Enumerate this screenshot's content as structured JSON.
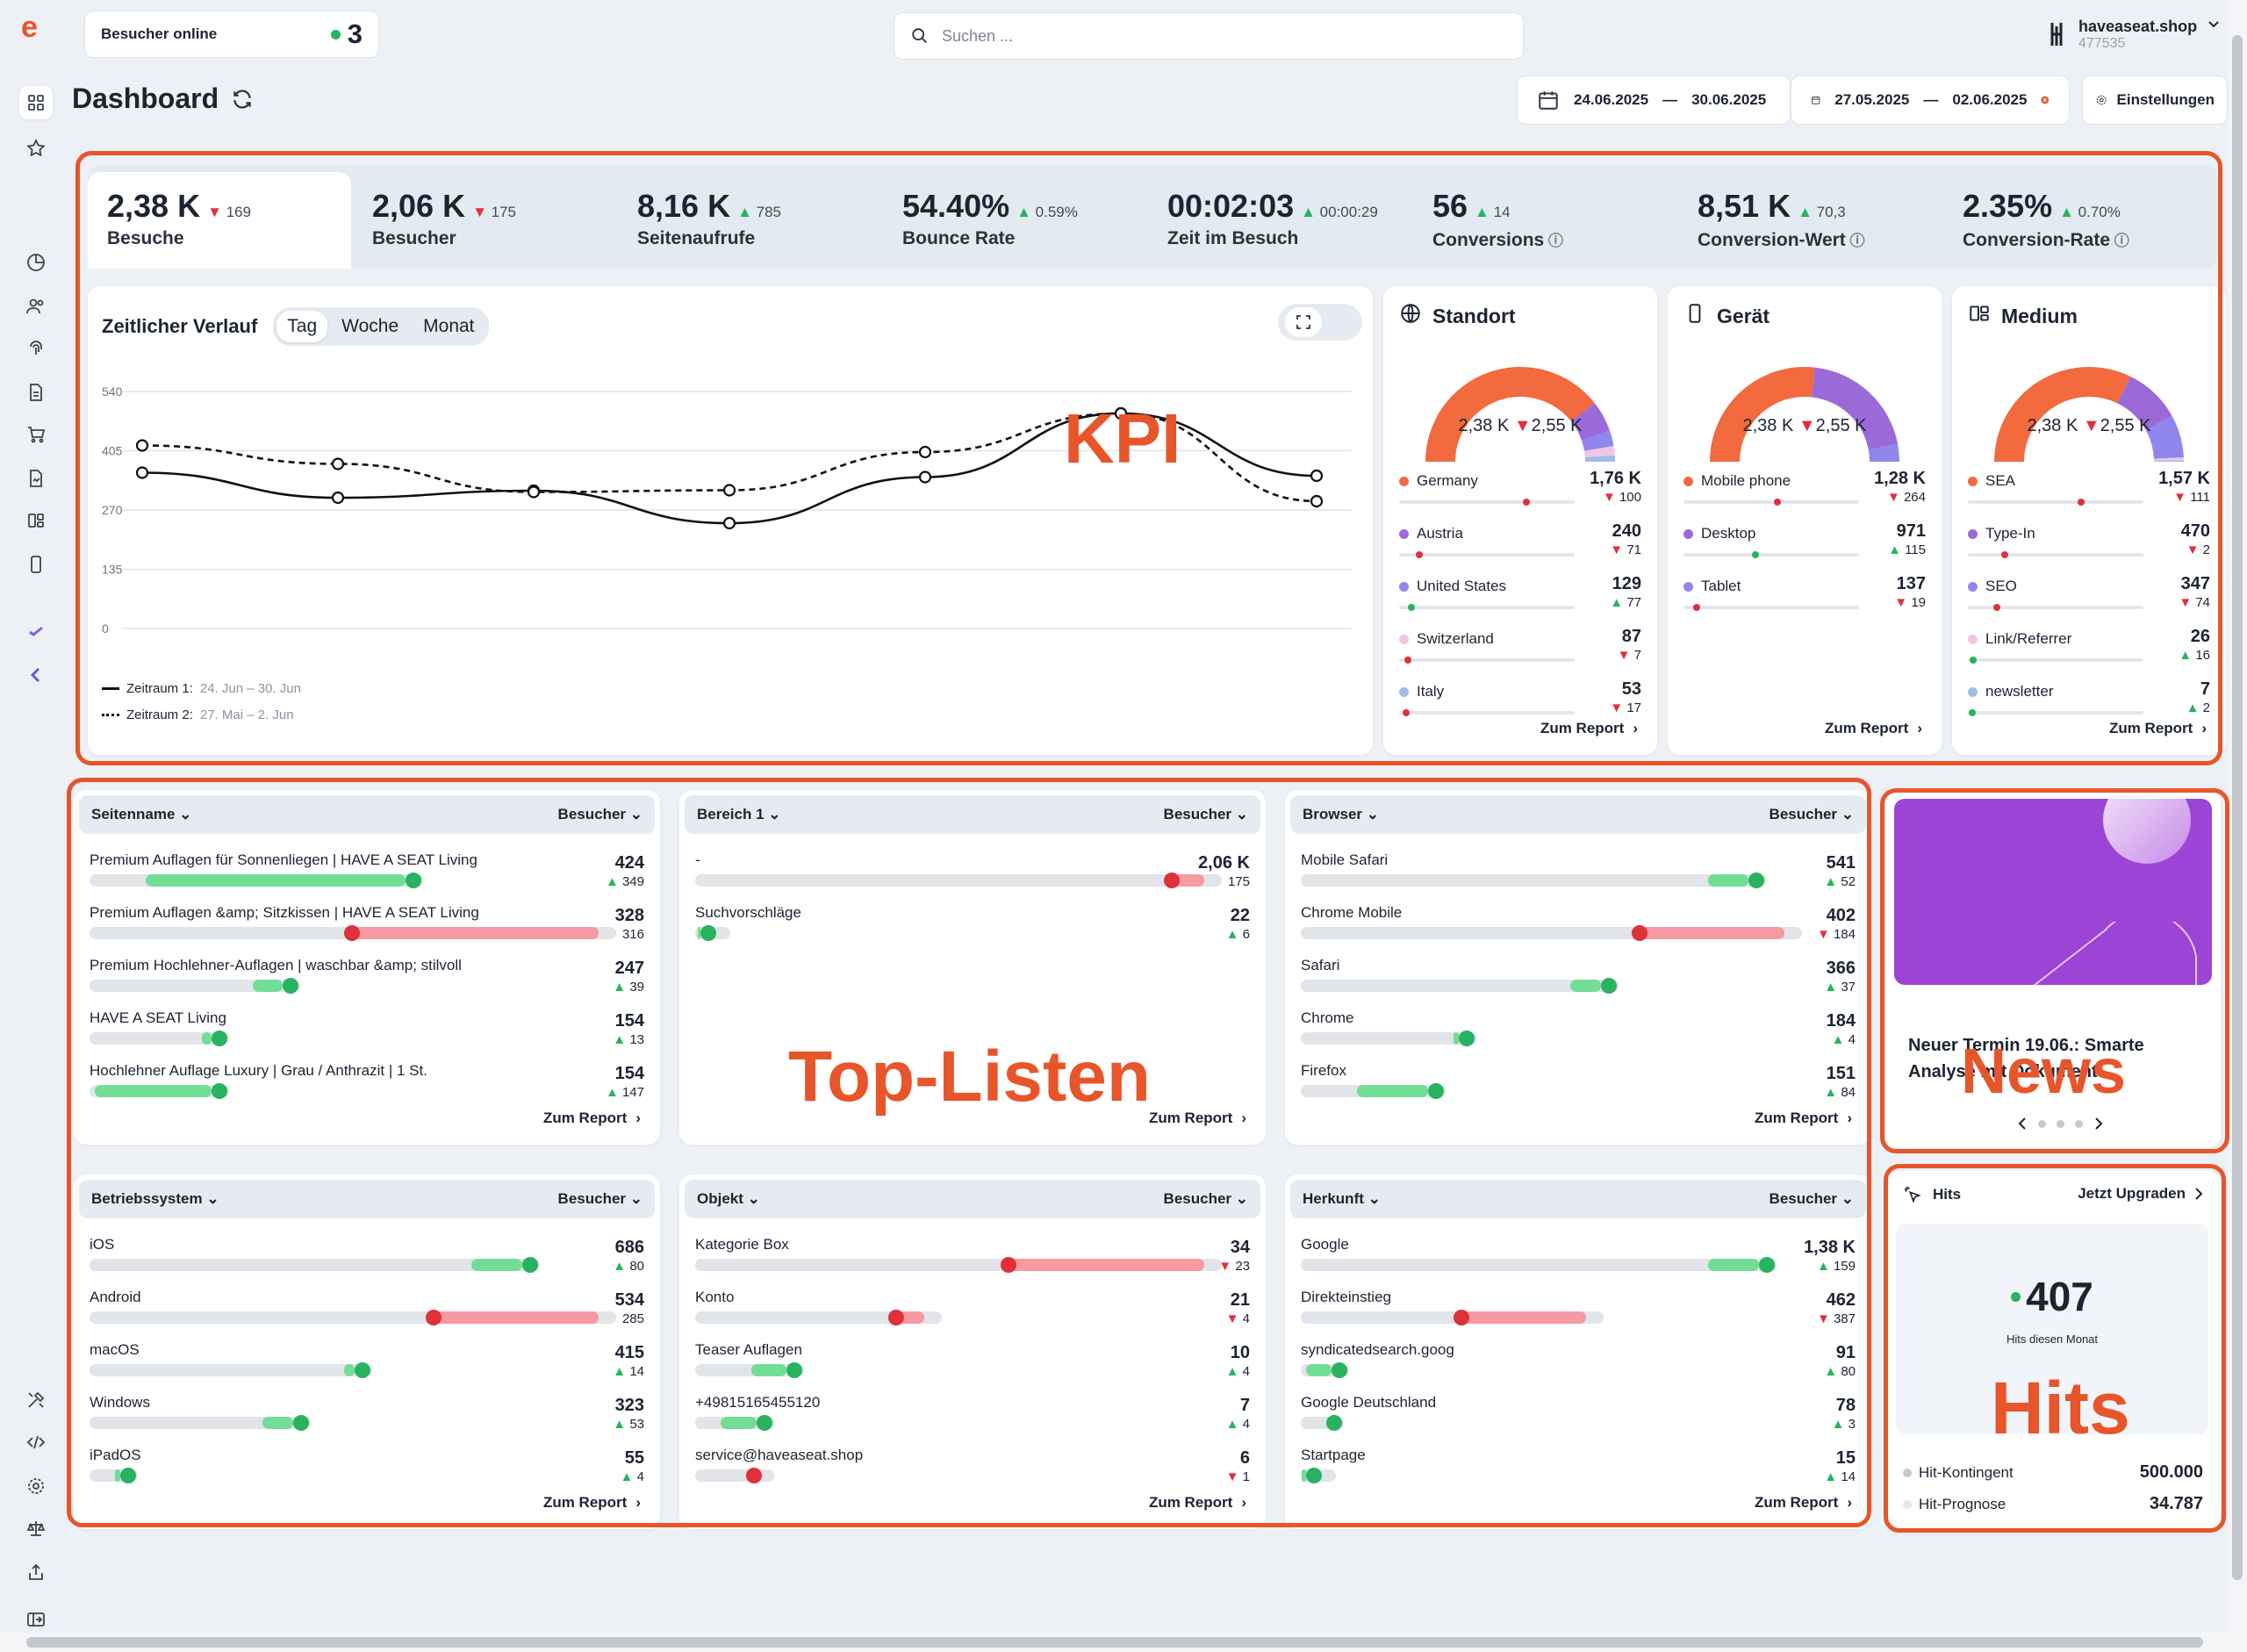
{
  "header": {
    "online_label": "Besucher online",
    "online_count": "3",
    "search_placeholder": "Suchen ...",
    "account_name": "haveaseat.shop",
    "account_id": "477535",
    "title": "Dashboard",
    "range1": "24.06.2025",
    "range1_sep": "—",
    "range1_end": "30.06.2025",
    "range2": "27.05.2025",
    "range2_sep": "—",
    "range2_end": "02.06.2025",
    "settings": "Einstellungen"
  },
  "kpis": [
    {
      "value": "2,38 K",
      "delta": "169",
      "dir": "down",
      "label": "Besuche"
    },
    {
      "value": "2,06 K",
      "delta": "175",
      "dir": "down",
      "label": "Besucher"
    },
    {
      "value": "8,16 K",
      "delta": "785",
      "dir": "up",
      "label": "Seitenaufrufe"
    },
    {
      "value": "54.40%",
      "delta": "0.59%",
      "dir": "up",
      "label": "Bounce Rate"
    },
    {
      "value": "00:02:03",
      "delta": "00:00:29",
      "dir": "up",
      "label": "Zeit im Besuch"
    },
    {
      "value": "56",
      "delta": "14",
      "dir": "up",
      "label": "Conversions"
    },
    {
      "value": "8,51 K",
      "delta": "70,3",
      "dir": "up",
      "label": "Conversion-Wert"
    },
    {
      "value": "2.35%",
      "delta": "0.70%",
      "dir": "up",
      "label": "Conversion-Rate"
    }
  ],
  "chart": {
    "title": "Zeitlicher Verlauf",
    "tabs": [
      "Tag",
      "Woche",
      "Monat"
    ],
    "legend1_label": "Zeitraum 1:",
    "legend1_range": "24. Jun – 30. Jun",
    "legend2_label": "Zeitraum 2:",
    "legend2_range": "27. Mai – 2. Jun"
  },
  "chart_data": {
    "type": "line",
    "x": [
      "1",
      "2",
      "3",
      "4",
      "5",
      "6",
      "7"
    ],
    "yticks": [
      "540",
      "405",
      "270",
      "135",
      "0"
    ],
    "ylim": [
      0,
      540
    ],
    "grid": true,
    "series": [
      {
        "name": "Zeitraum 1",
        "style": "solid",
        "values": [
          355,
          298,
          314,
          240,
          345,
          490,
          348
        ]
      },
      {
        "name": "Zeitraum 2",
        "style": "dashed",
        "values": [
          417,
          375,
          311,
          315,
          402,
          490,
          290
        ]
      }
    ]
  },
  "donuts": [
    {
      "title": "Standort",
      "icon": "globe-icon",
      "center_value": "2,38 K",
      "center_delta": "2,55 K",
      "rows": [
        {
          "name": "Germany",
          "color": "#f26a3d",
          "value": "1,76 K",
          "delta": "100",
          "dir": "down",
          "fill": 0.74
        },
        {
          "name": "Austria",
          "color": "#9b6ad8",
          "value": "240",
          "delta": "71",
          "dir": "down",
          "fill": 0.1
        },
        {
          "name": "United States",
          "color": "#8f86ee",
          "value": "129",
          "delta": "77",
          "dir": "up",
          "fill": 0.05
        },
        {
          "name": "Switzerland",
          "color": "#f0c6e6",
          "value": "87",
          "delta": "7",
          "dir": "down",
          "fill": 0.03
        },
        {
          "name": "Italy",
          "color": "#9ebde8",
          "value": "53",
          "delta": "17",
          "dir": "down",
          "fill": 0.02
        }
      ],
      "report": "Zum Report"
    },
    {
      "title": "Gerät",
      "icon": "phone-icon",
      "center_value": "2,38 K",
      "center_delta": "2,55 K",
      "rows": [
        {
          "name": "Mobile phone",
          "color": "#f26a3d",
          "value": "1,28 K",
          "delta": "264",
          "dir": "down",
          "fill": 0.54
        },
        {
          "name": "Desktop",
          "color": "#9b6ad8",
          "value": "971",
          "delta": "115",
          "dir": "up",
          "fill": 0.41
        },
        {
          "name": "Tablet",
          "color": "#8f86ee",
          "value": "137",
          "delta": "19",
          "dir": "down",
          "fill": 0.06
        }
      ],
      "report": "Zum Report"
    },
    {
      "title": "Medium",
      "icon": "medium-icon",
      "center_value": "2,38 K",
      "center_delta": "2,55 K",
      "rows": [
        {
          "name": "SEA",
          "color": "#f26a3d",
          "value": "1,57 K",
          "delta": "111",
          "dir": "down",
          "fill": 0.66
        },
        {
          "name": "Type-In",
          "color": "#9b6ad8",
          "value": "470",
          "delta": "2",
          "dir": "down",
          "fill": 0.2
        },
        {
          "name": "SEO",
          "color": "#8f86ee",
          "value": "347",
          "delta": "74",
          "dir": "down",
          "fill": 0.15
        },
        {
          "name": "Link/Referrer",
          "color": "#f0c6e6",
          "value": "26",
          "delta": "16",
          "dir": "up",
          "fill": 0.01
        },
        {
          "name": "newsletter",
          "color": "#9ebde8",
          "value": "7",
          "delta": "2",
          "dir": "up",
          "fill": 0.005
        }
      ],
      "report": "Zum Report"
    }
  ],
  "lists": [
    {
      "dim": "Seitenname",
      "metric": "Besucher",
      "report": "Zum Report",
      "rows": [
        {
          "name": "Premium Auflagen für Sonnenliegen | HAVE A SEAT Living",
          "value": "424",
          "delta": "349",
          "dir": "up",
          "cur": 0.62,
          "prev": 0.11
        },
        {
          "name": "Premium Auflagen &amp; Sitzkissen | HAVE A SEAT Living",
          "value": "328",
          "delta": "316",
          "dir": "down",
          "cur": 0.5,
          "prev": 1.0
        },
        {
          "name": "Premium Hochlehner-Auflagen | waschbar &amp; stilvoll",
          "value": "247",
          "delta": "39",
          "dir": "up",
          "cur": 0.38,
          "prev": 0.32
        },
        {
          "name": "HAVE A SEAT Living",
          "value": "154",
          "delta": "13",
          "dir": "up",
          "cur": 0.24,
          "prev": 0.22
        },
        {
          "name": "Hochlehner Auflage Luxury | Grau / Anthrazit | 1 St.",
          "value": "154",
          "delta": "147",
          "dir": "up",
          "cur": 0.24,
          "prev": 0.01
        }
      ]
    },
    {
      "dim": "Bereich 1",
      "metric": "Besucher",
      "report": "Zum Report",
      "rows": [
        {
          "name": "-",
          "value": "2,06 K",
          "delta": "175",
          "dir": "down",
          "cur": 0.92,
          "prev": 1.0
        },
        {
          "name": "Suchvorschläge",
          "value": "22",
          "delta": "6",
          "dir": "up",
          "cur": 0.01,
          "prev": 0.005
        }
      ]
    },
    {
      "dim": "Browser",
      "metric": "Besucher",
      "report": "Zum Report",
      "rows": [
        {
          "name": "Mobile Safari",
          "value": "541",
          "delta": "52",
          "dir": "up",
          "cur": 0.88,
          "prev": 0.8
        },
        {
          "name": "Chrome Mobile",
          "value": "402",
          "delta": "184",
          "dir": "down",
          "cur": 0.65,
          "prev": 0.95
        },
        {
          "name": "Safari",
          "value": "366",
          "delta": "37",
          "dir": "up",
          "cur": 0.59,
          "prev": 0.53
        },
        {
          "name": "Chrome",
          "value": "184",
          "delta": "4",
          "dir": "up",
          "cur": 0.31,
          "prev": 0.3
        },
        {
          "name": "Firefox",
          "value": "151",
          "delta": "84",
          "dir": "up",
          "cur": 0.25,
          "prev": 0.11
        }
      ]
    },
    {
      "dim": "Betriebssystem",
      "metric": "Besucher",
      "report": "Zum Report",
      "rows": [
        {
          "name": "iOS",
          "value": "686",
          "delta": "80",
          "dir": "up",
          "cur": 0.85,
          "prev": 0.75
        },
        {
          "name": "Android",
          "value": "534",
          "delta": "285",
          "dir": "down",
          "cur": 0.66,
          "prev": 1.0
        },
        {
          "name": "macOS",
          "value": "415",
          "delta": "14",
          "dir": "up",
          "cur": 0.52,
          "prev": 0.5
        },
        {
          "name": "Windows",
          "value": "323",
          "delta": "53",
          "dir": "up",
          "cur": 0.4,
          "prev": 0.34
        },
        {
          "name": "iPadOS",
          "value": "55",
          "delta": "4",
          "dir": "up",
          "cur": 0.06,
          "prev": 0.05
        }
      ]
    },
    {
      "dim": "Objekt",
      "metric": "Besucher",
      "report": "Zum Report",
      "rows": [
        {
          "name": "Kategorie Box",
          "value": "34",
          "delta": "23",
          "dir": "down",
          "cur": 0.6,
          "prev": 1.0
        },
        {
          "name": "Konto",
          "value": "21",
          "delta": "4",
          "dir": "down",
          "cur": 0.38,
          "prev": 0.45
        },
        {
          "name": "Teaser Auflagen",
          "value": "10",
          "delta": "4",
          "dir": "up",
          "cur": 0.18,
          "prev": 0.11
        },
        {
          "name": "+49815165455120",
          "value": "7",
          "delta": "4",
          "dir": "up",
          "cur": 0.12,
          "prev": 0.05
        },
        {
          "name": "service@haveaseat.shop",
          "value": "6",
          "delta": "1",
          "dir": "down",
          "cur": 0.1,
          "prev": 0.12
        }
      ]
    },
    {
      "dim": "Herkunft",
      "metric": "Besucher",
      "report": "Zum Report",
      "rows": [
        {
          "name": "Google",
          "value": "1,38 K",
          "delta": "159",
          "dir": "up",
          "cur": 0.9,
          "prev": 0.8
        },
        {
          "name": "Direkteinstieg",
          "value": "462",
          "delta": "387",
          "dir": "down",
          "cur": 0.3,
          "prev": 0.56
        },
        {
          "name": "syndicatedsearch.goog",
          "value": "91",
          "delta": "80",
          "dir": "up",
          "cur": 0.06,
          "prev": 0.01
        },
        {
          "name": "Google Deutschland",
          "value": "78",
          "delta": "3",
          "dir": "up",
          "cur": 0.05,
          "prev": 0.05
        },
        {
          "name": "Startpage",
          "value": "15",
          "delta": "14",
          "dir": "up",
          "cur": 0.01,
          "prev": 0.002
        }
      ]
    }
  ],
  "news": {
    "text": "Neuer Termin 19.06.: Smarte Analyse mit Dokument",
    "pager_dots": 4
  },
  "hits": {
    "title": "Hits",
    "upgrade": "Jetzt Upgraden",
    "count": "407",
    "caption": "Hits diesen Monat",
    "quota_label": "Hit-Kontingent",
    "quota_value": "500.000",
    "forecast_label": "Hit-Prognose",
    "forecast_value": "34.787"
  },
  "annotations": {
    "kpi": "KPI",
    "toplists": "Top-Listen",
    "news": "News",
    "hits": "Hits"
  },
  "colors": {
    "accent": "#e8552a",
    "up": "#27b35f",
    "down": "#e0303a",
    "bar_green": "#72dd95",
    "bar_red": "#f49aa0",
    "donut_orange": "#f26a3d",
    "donut_purple": "#9b6ad8",
    "donut_violet": "#8f86ee",
    "news_bg": "#9b44d6"
  }
}
